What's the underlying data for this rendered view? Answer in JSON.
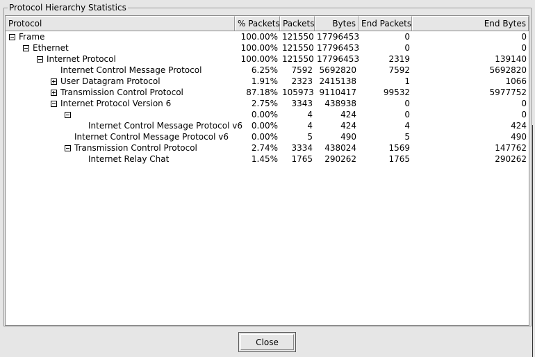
{
  "window": {
    "group_title": "Protocol Hierarchy Statistics"
  },
  "columns": [
    "Protocol",
    "% Packets",
    "Packets",
    "Bytes",
    "End Packets",
    "End Bytes"
  ],
  "rows": [
    {
      "name": "Frame",
      "level": 0,
      "expander": "minus",
      "pct": "100.00%",
      "packets": "121550",
      "bytes": "17796453",
      "end_packets": "0",
      "end_bytes": "0"
    },
    {
      "name": "Ethernet",
      "level": 1,
      "expander": "minus",
      "pct": "100.00%",
      "packets": "121550",
      "bytes": "17796453",
      "end_packets": "0",
      "end_bytes": "0"
    },
    {
      "name": "Internet Protocol",
      "level": 2,
      "expander": "minus",
      "pct": "100.00%",
      "packets": "121550",
      "bytes": "17796453",
      "end_packets": "2319",
      "end_bytes": "139140"
    },
    {
      "name": "Internet Control Message Protocol",
      "level": 3,
      "expander": "none",
      "pct": "6.25%",
      "packets": "7592",
      "bytes": "5692820",
      "end_packets": "7592",
      "end_bytes": "5692820"
    },
    {
      "name": "User Datagram Protocol",
      "level": 3,
      "expander": "plus",
      "pct": "1.91%",
      "packets": "2323",
      "bytes": "2415138",
      "end_packets": "1",
      "end_bytes": "1066"
    },
    {
      "name": "Transmission Control Protocol",
      "level": 3,
      "expander": "plus",
      "pct": "87.18%",
      "packets": "105973",
      "bytes": "9110417",
      "end_packets": "99532",
      "end_bytes": "5977752"
    },
    {
      "name": "Internet Protocol Version 6",
      "level": 3,
      "expander": "minus",
      "pct": "2.75%",
      "packets": "3343",
      "bytes": "438938",
      "end_packets": "0",
      "end_bytes": "0"
    },
    {
      "name": "",
      "level": 4,
      "expander": "minus",
      "pct": "0.00%",
      "packets": "4",
      "bytes": "424",
      "end_packets": "0",
      "end_bytes": "0"
    },
    {
      "name": "Internet Control Message Protocol v6",
      "level": 5,
      "expander": "none",
      "pct": "0.00%",
      "packets": "4",
      "bytes": "424",
      "end_packets": "4",
      "end_bytes": "424"
    },
    {
      "name": "Internet Control Message Protocol v6",
      "level": 4,
      "expander": "none",
      "pct": "0.00%",
      "packets": "5",
      "bytes": "490",
      "end_packets": "5",
      "end_bytes": "490"
    },
    {
      "name": "Transmission Control Protocol",
      "level": 4,
      "expander": "minus",
      "pct": "2.74%",
      "packets": "3334",
      "bytes": "438024",
      "end_packets": "1569",
      "end_bytes": "147762"
    },
    {
      "name": "Internet Relay Chat",
      "level": 5,
      "expander": "none",
      "pct": "1.45%",
      "packets": "1765",
      "bytes": "290262",
      "end_packets": "1765",
      "end_bytes": "290262"
    }
  ],
  "buttons": {
    "close": "Close"
  }
}
